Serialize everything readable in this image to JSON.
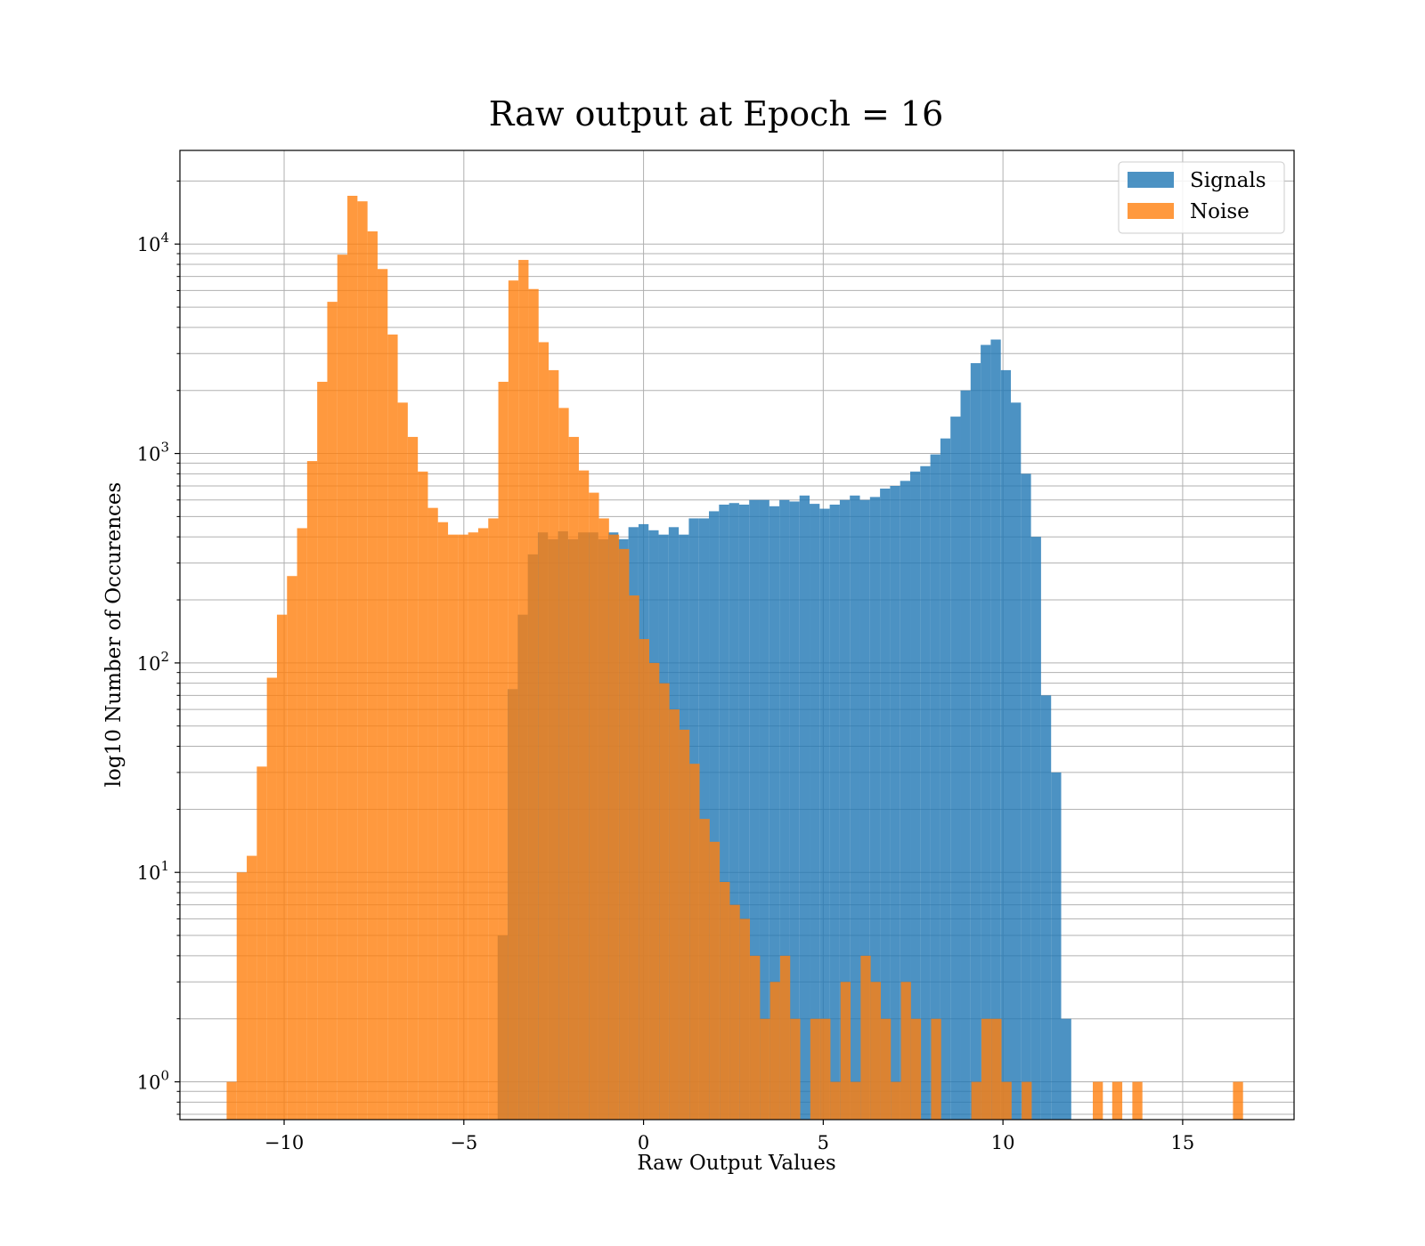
{
  "chart_data": {
    "type": "histogram",
    "title": "Raw output at Epoch = 16",
    "xlabel": "Raw Output Values",
    "ylabel": "log10 Number of Occurences",
    "xlim": [
      -12.9,
      18.1
    ],
    "ylim": [
      0.66,
      28000
    ],
    "yscale": "log",
    "grid": true,
    "legend_position": "top-right",
    "x_ticks": [
      -10,
      -5,
      0,
      5,
      10,
      15
    ],
    "x_tick_labels": [
      "−10",
      "−5",
      "0",
      "5",
      "10",
      "15"
    ],
    "y_ticks": [
      1,
      10,
      100,
      1000,
      10000
    ],
    "y_tick_bases": [
      "10",
      "10",
      "10",
      "10",
      "10"
    ],
    "y_tick_exponents": [
      "0",
      "1",
      "2",
      "3",
      "4"
    ],
    "series": [
      {
        "name": "Signals",
        "color": "#1f77b4",
        "opacity": 0.8,
        "bins": [
          [
            -4.06,
            -3.78,
            5
          ],
          [
            -3.78,
            -3.5,
            75
          ],
          [
            -3.5,
            -3.22,
            170
          ],
          [
            -3.22,
            -2.94,
            330
          ],
          [
            -2.94,
            -2.66,
            420
          ],
          [
            -2.66,
            -2.38,
            390
          ],
          [
            -2.38,
            -2.1,
            425
          ],
          [
            -2.1,
            -1.82,
            390
          ],
          [
            -1.82,
            -1.54,
            420
          ],
          [
            -1.54,
            -1.26,
            420
          ],
          [
            -1.26,
            -0.98,
            390
          ],
          [
            -0.98,
            -0.7,
            420
          ],
          [
            -0.7,
            -0.42,
            390
          ],
          [
            -0.42,
            -0.14,
            445
          ],
          [
            -0.14,
            0.14,
            460
          ],
          [
            0.14,
            0.42,
            430
          ],
          [
            0.42,
            0.7,
            410
          ],
          [
            0.7,
            0.98,
            445
          ],
          [
            0.98,
            1.26,
            410
          ],
          [
            1.26,
            1.54,
            490
          ],
          [
            1.54,
            1.82,
            490
          ],
          [
            1.82,
            2.1,
            530
          ],
          [
            2.1,
            2.38,
            570
          ],
          [
            2.38,
            2.66,
            580
          ],
          [
            2.66,
            2.94,
            570
          ],
          [
            2.94,
            3.22,
            600
          ],
          [
            3.22,
            3.5,
            600
          ],
          [
            3.5,
            3.78,
            560
          ],
          [
            3.78,
            4.06,
            600
          ],
          [
            4.06,
            4.34,
            590
          ],
          [
            4.34,
            4.62,
            630
          ],
          [
            4.62,
            4.9,
            575
          ],
          [
            4.9,
            5.18,
            545
          ],
          [
            5.18,
            5.46,
            570
          ],
          [
            5.46,
            5.74,
            600
          ],
          [
            5.74,
            6.02,
            630
          ],
          [
            6.02,
            6.3,
            600
          ],
          [
            6.3,
            6.58,
            620
          ],
          [
            6.58,
            6.86,
            680
          ],
          [
            6.86,
            7.14,
            700
          ],
          [
            7.14,
            7.42,
            740
          ],
          [
            7.42,
            7.7,
            820
          ],
          [
            7.7,
            7.98,
            870
          ],
          [
            7.98,
            8.26,
            990
          ],
          [
            8.26,
            8.54,
            1180
          ],
          [
            8.54,
            8.82,
            1500
          ],
          [
            8.82,
            9.1,
            2000
          ],
          [
            9.1,
            9.38,
            2700
          ],
          [
            9.38,
            9.66,
            3300
          ],
          [
            9.66,
            9.94,
            3500
          ],
          [
            9.94,
            10.22,
            2500
          ],
          [
            10.22,
            10.5,
            1750
          ],
          [
            10.5,
            10.78,
            800
          ],
          [
            10.78,
            11.06,
            400
          ],
          [
            11.06,
            11.34,
            70
          ],
          [
            11.34,
            11.62,
            30
          ],
          [
            11.62,
            11.9,
            2
          ]
        ]
      },
      {
        "name": "Noise",
        "color": "#ff7f0e",
        "opacity": 0.8,
        "bins": [
          [
            -11.6,
            -11.32,
            1
          ],
          [
            -11.32,
            -11.04,
            10
          ],
          [
            -11.04,
            -10.76,
            12
          ],
          [
            -10.76,
            -10.48,
            32
          ],
          [
            -10.48,
            -10.2,
            85
          ],
          [
            -10.2,
            -9.92,
            170
          ],
          [
            -9.92,
            -9.64,
            260
          ],
          [
            -9.64,
            -9.36,
            440
          ],
          [
            -9.36,
            -9.08,
            920
          ],
          [
            -9.08,
            -8.8,
            2200
          ],
          [
            -8.8,
            -8.52,
            5300
          ],
          [
            -8.52,
            -8.24,
            8900
          ],
          [
            -8.24,
            -7.96,
            17000
          ],
          [
            -7.96,
            -7.68,
            16000
          ],
          [
            -7.68,
            -7.4,
            11500
          ],
          [
            -7.4,
            -7.12,
            7600
          ],
          [
            -7.12,
            -6.84,
            3700
          ],
          [
            -6.84,
            -6.56,
            1750
          ],
          [
            -6.56,
            -6.28,
            1200
          ],
          [
            -6.28,
            -6.0,
            820
          ],
          [
            -6.0,
            -5.72,
            550
          ],
          [
            -5.72,
            -5.44,
            470
          ],
          [
            -5.44,
            -5.16,
            410
          ],
          [
            -5.16,
            -4.88,
            410
          ],
          [
            -4.88,
            -4.6,
            420
          ],
          [
            -4.6,
            -4.32,
            440
          ],
          [
            -4.32,
            -4.04,
            490
          ],
          [
            -4.04,
            -3.76,
            2200
          ],
          [
            -3.76,
            -3.48,
            6700
          ],
          [
            -3.48,
            -3.2,
            8400
          ],
          [
            -3.2,
            -2.92,
            6100
          ],
          [
            -2.92,
            -2.64,
            3400
          ],
          [
            -2.64,
            -2.36,
            2500
          ],
          [
            -2.36,
            -2.08,
            1650
          ],
          [
            -2.08,
            -1.8,
            1200
          ],
          [
            -1.8,
            -1.52,
            830
          ],
          [
            -1.52,
            -1.24,
            650
          ],
          [
            -1.24,
            -0.96,
            490
          ],
          [
            -0.96,
            -0.68,
            410
          ],
          [
            -0.68,
            -0.4,
            350
          ],
          [
            -0.4,
            -0.12,
            210
          ],
          [
            -0.12,
            0.16,
            130
          ],
          [
            0.16,
            0.44,
            100
          ],
          [
            0.44,
            0.72,
            80
          ],
          [
            0.72,
            1.0,
            60
          ],
          [
            1.0,
            1.28,
            48
          ],
          [
            1.28,
            1.56,
            33
          ],
          [
            1.56,
            1.84,
            18
          ],
          [
            1.84,
            2.12,
            14
          ],
          [
            2.12,
            2.4,
            9
          ],
          [
            2.4,
            2.68,
            7
          ],
          [
            2.68,
            2.96,
            6
          ],
          [
            2.96,
            3.24,
            4
          ],
          [
            3.24,
            3.52,
            2
          ],
          [
            3.52,
            3.8,
            3
          ],
          [
            3.8,
            4.08,
            4
          ],
          [
            4.08,
            4.36,
            2
          ],
          [
            4.36,
            4.64,
            0
          ],
          [
            4.64,
            4.92,
            2
          ],
          [
            4.92,
            5.2,
            2
          ],
          [
            5.2,
            5.48,
            1
          ],
          [
            5.48,
            5.76,
            3
          ],
          [
            5.76,
            6.04,
            1
          ],
          [
            6.04,
            6.32,
            4
          ],
          [
            6.32,
            6.6,
            3
          ],
          [
            6.6,
            6.88,
            2
          ],
          [
            6.88,
            7.16,
            1
          ],
          [
            7.16,
            7.44,
            3
          ],
          [
            7.44,
            7.72,
            2
          ],
          [
            7.72,
            8.0,
            0
          ],
          [
            8.0,
            8.28,
            2
          ],
          [
            8.28,
            8.56,
            0
          ],
          [
            8.56,
            8.84,
            0
          ],
          [
            8.84,
            9.12,
            0
          ],
          [
            9.12,
            9.4,
            1
          ],
          [
            9.4,
            9.68,
            2
          ],
          [
            9.68,
            9.96,
            2
          ],
          [
            9.96,
            10.24,
            1
          ],
          [
            10.24,
            10.52,
            0
          ],
          [
            10.52,
            10.8,
            1
          ],
          [
            12.5,
            12.78,
            1
          ],
          [
            13.04,
            13.32,
            1
          ],
          [
            13.6,
            13.88,
            1
          ],
          [
            16.4,
            16.68,
            1
          ]
        ]
      }
    ]
  }
}
